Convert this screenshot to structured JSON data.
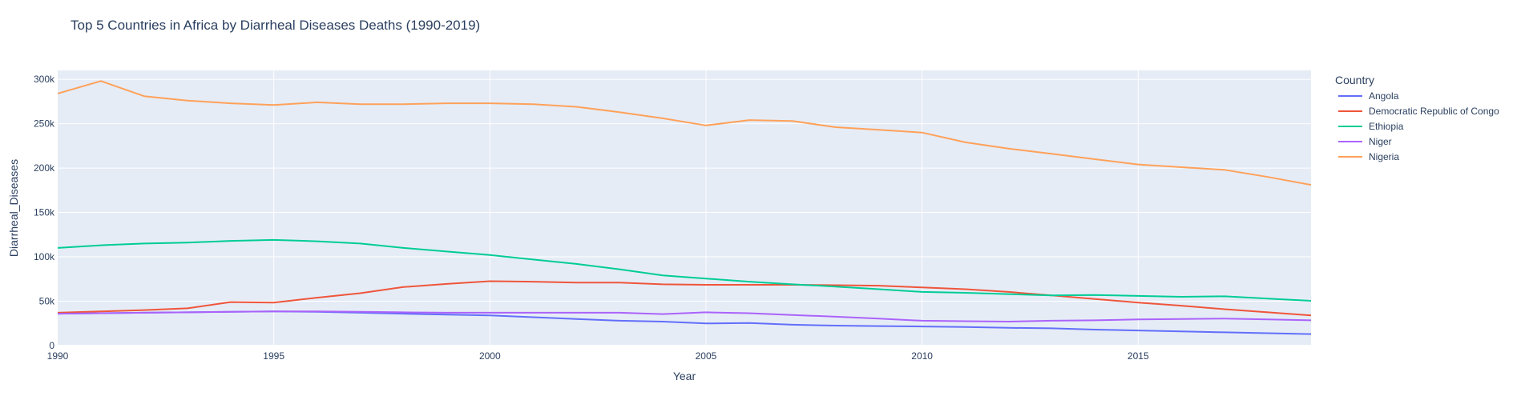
{
  "chart_data": {
    "type": "line",
    "title": "Top 5 Countries in Africa by Diarrheal Diseases Deaths (1990-2019)",
    "xlabel": "Year",
    "ylabel": "Diarrheal_Diseases",
    "xlim": [
      1990,
      2019
    ],
    "ylim": [
      0,
      310000
    ],
    "xticks": [
      1990,
      1995,
      2000,
      2005,
      2010,
      2015
    ],
    "xtick_labels": [
      "1990",
      "1995",
      "2000",
      "2005",
      "2010",
      "2015"
    ],
    "yticks": [
      0,
      50000,
      100000,
      150000,
      200000,
      250000,
      300000
    ],
    "ytick_labels": [
      "0",
      "50k",
      "100k",
      "150k",
      "200k",
      "250k",
      "300k"
    ],
    "grid": true,
    "legend": {
      "title": "Country",
      "placement": "right"
    },
    "x": [
      1990,
      1991,
      1992,
      1993,
      1994,
      1995,
      1996,
      1997,
      1998,
      1999,
      2000,
      2001,
      2002,
      2003,
      2004,
      2005,
      2006,
      2007,
      2008,
      2009,
      2010,
      2011,
      2012,
      2013,
      2014,
      2015,
      2016,
      2017,
      2018,
      2019
    ],
    "series": [
      {
        "name": "Angola",
        "color": "#636efa",
        "values": [
          36000,
          36500,
          37000,
          37500,
          38000,
          38500,
          38000,
          37000,
          36000,
          35000,
          34000,
          32000,
          30000,
          28000,
          27000,
          25000,
          25500,
          23500,
          22500,
          22000,
          21500,
          21000,
          20000,
          19500,
          18000,
          17000,
          16000,
          15000,
          14000,
          13000
        ]
      },
      {
        "name": "Democratic Republic of Congo",
        "color": "#EF553B",
        "values": [
          37000,
          38500,
          40000,
          42000,
          49000,
          48500,
          54000,
          59000,
          66000,
          69500,
          72500,
          72000,
          71000,
          71000,
          69000,
          68500,
          68500,
          68500,
          68000,
          67500,
          65500,
          63500,
          60500,
          56500,
          52500,
          48500,
          45000,
          41000,
          37500,
          34000
        ]
      },
      {
        "name": "Ethiopia",
        "color": "#00cc96",
        "values": [
          110000,
          113000,
          115000,
          116000,
          118000,
          119000,
          117500,
          115000,
          110000,
          106000,
          102000,
          97000,
          92000,
          86000,
          79000,
          75500,
          72000,
          69000,
          66500,
          63500,
          60500,
          59500,
          58000,
          56500,
          57000,
          56000,
          55000,
          55500,
          53000,
          50500
        ]
      },
      {
        "name": "Niger",
        "color": "#ab63fa",
        "values": [
          36000,
          36500,
          37000,
          37500,
          38000,
          38500,
          38500,
          38000,
          37500,
          37000,
          37000,
          37000,
          37000,
          37000,
          35500,
          37500,
          36500,
          34500,
          32500,
          30500,
          28000,
          27500,
          27000,
          28000,
          28500,
          29500,
          30000,
          30500,
          29500,
          28500
        ]
      },
      {
        "name": "Nigeria",
        "color": "#FFA15A",
        "values": [
          284000,
          298000,
          281000,
          276000,
          273000,
          271000,
          274000,
          272000,
          272000,
          273000,
          273000,
          272000,
          269000,
          263000,
          256000,
          248000,
          254000,
          253000,
          246000,
          243000,
          240000,
          229000,
          222000,
          216000,
          210000,
          204000,
          201000,
          198000,
          190000,
          181000
        ]
      }
    ]
  }
}
